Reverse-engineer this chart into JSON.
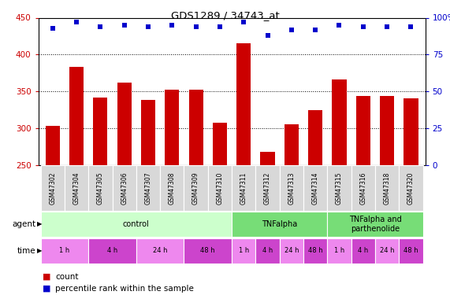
{
  "title": "GDS1289 / 34743_at",
  "samples": [
    "GSM47302",
    "GSM47304",
    "GSM47305",
    "GSM47306",
    "GSM47307",
    "GSM47308",
    "GSM47309",
    "GSM47310",
    "GSM47311",
    "GSM47312",
    "GSM47313",
    "GSM47314",
    "GSM47315",
    "GSM47316",
    "GSM47318",
    "GSM47320"
  ],
  "counts": [
    303,
    383,
    342,
    362,
    339,
    352,
    352,
    308,
    415,
    268,
    305,
    325,
    366,
    344,
    344,
    341
  ],
  "percentiles": [
    93,
    97,
    94,
    95,
    94,
    95,
    94,
    94,
    97,
    88,
    92,
    92,
    95,
    94,
    94,
    94
  ],
  "bar_color": "#cc0000",
  "dot_color": "#0000cc",
  "ylim_left": [
    250,
    450
  ],
  "ylim_right": [
    0,
    100
  ],
  "yticks_left": [
    250,
    300,
    350,
    400,
    450
  ],
  "yticks_right": [
    0,
    25,
    50,
    75,
    100
  ],
  "agent_colors": [
    "#ccffcc",
    "#77dd77",
    "#77dd77"
  ],
  "agent_labels": [
    "control",
    "TNFalpha",
    "TNFalpha and\nparthenolide"
  ],
  "agent_starts": [
    0,
    8,
    12
  ],
  "agent_ends": [
    8,
    12,
    16
  ],
  "time_labels": [
    "1 h",
    "4 h",
    "24 h",
    "48 h",
    "1 h",
    "4 h",
    "24 h",
    "48 h",
    "1 h",
    "4 h",
    "24 h",
    "48 h"
  ],
  "time_starts": [
    0,
    2,
    4,
    6,
    8,
    9,
    10,
    11,
    12,
    13,
    14,
    15
  ],
  "time_ends": [
    2,
    4,
    6,
    8,
    9,
    10,
    11,
    12,
    13,
    14,
    15,
    16
  ],
  "time_colors": [
    "#ee88ee",
    "#cc44cc",
    "#ee88ee",
    "#cc44cc",
    "#ee88ee",
    "#cc44cc",
    "#ee88ee",
    "#cc44cc",
    "#ee88ee",
    "#cc44cc",
    "#ee88ee",
    "#cc44cc"
  ],
  "bar_color_legend": "#cc0000",
  "dot_color_legend": "#0000cc"
}
